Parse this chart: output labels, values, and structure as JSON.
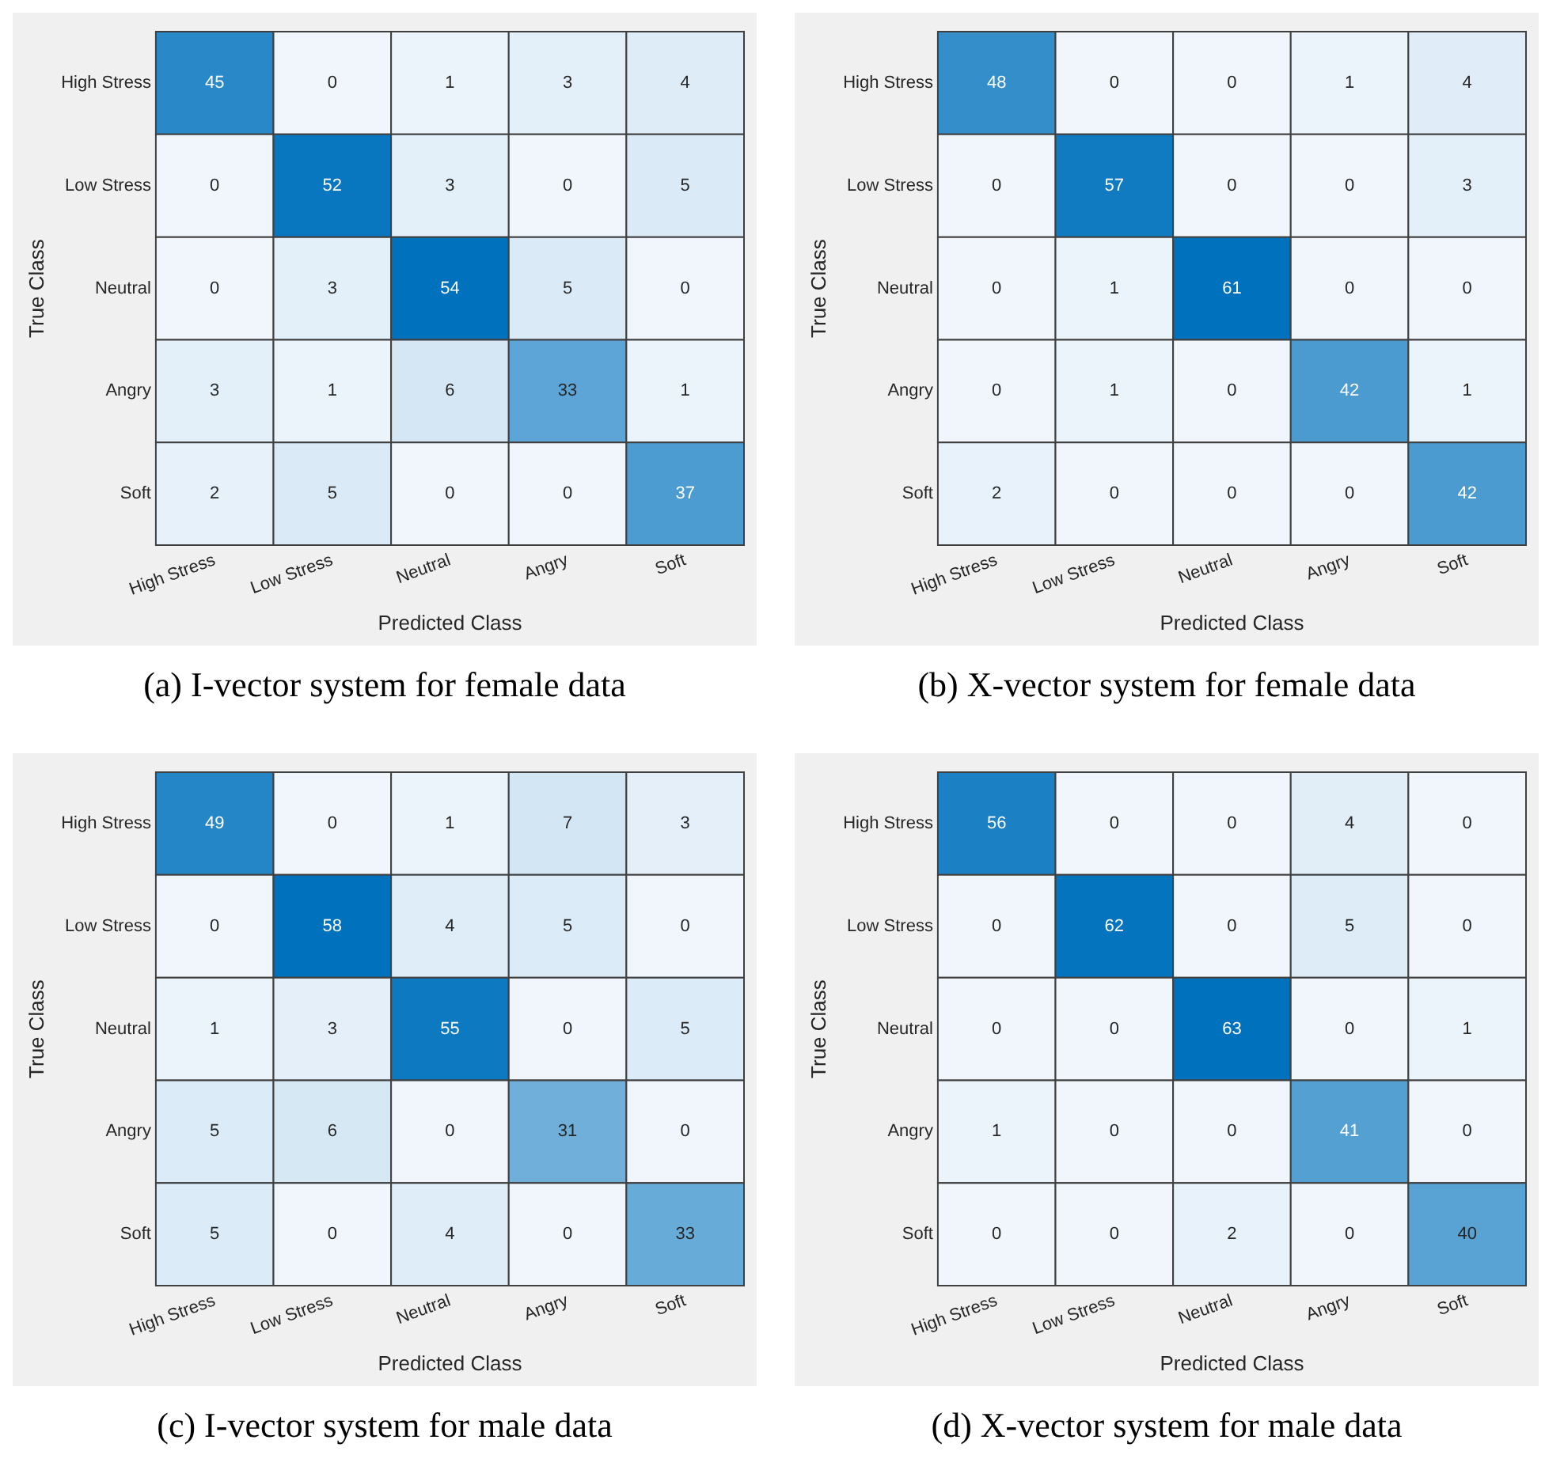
{
  "chart_data": [
    {
      "type": "heatmap",
      "xlabel": "Predicted Class",
      "ylabel": "True Class",
      "annotations": [
        "(a) I-vector system for female data"
      ],
      "data_labels": true,
      "categories": [
        "High Stress",
        "Low Stress",
        "Neutral",
        "Angry",
        "Soft"
      ],
      "y_categories": [
        "High Stress",
        "Low Stress",
        "Neutral",
        "Angry",
        "Soft"
      ],
      "cells": [
        [
          45,
          0,
          1,
          3,
          4
        ],
        [
          0,
          52,
          3,
          0,
          5
        ],
        [
          0,
          3,
          54,
          5,
          0
        ],
        [
          3,
          1,
          6,
          33,
          1
        ],
        [
          2,
          5,
          0,
          0,
          37
        ]
      ]
    },
    {
      "type": "heatmap",
      "xlabel": "Predicted Class",
      "ylabel": "True Class",
      "annotations": [
        "(b) X-vector system for female data"
      ],
      "data_labels": true,
      "categories": [
        "High Stress",
        "Low Stress",
        "Neutral",
        "Angry",
        "Soft"
      ],
      "y_categories": [
        "High Stress",
        "Low Stress",
        "Neutral",
        "Angry",
        "Soft"
      ],
      "cells": [
        [
          48,
          0,
          0,
          1,
          4
        ],
        [
          0,
          57,
          0,
          0,
          3
        ],
        [
          0,
          1,
          61,
          0,
          0
        ],
        [
          0,
          1,
          0,
          42,
          1
        ],
        [
          2,
          0,
          0,
          0,
          42
        ]
      ]
    },
    {
      "type": "heatmap",
      "xlabel": "Predicted Class",
      "ylabel": "True Class",
      "annotations": [
        "(c) I-vector system for male data"
      ],
      "data_labels": true,
      "categories": [
        "High Stress",
        "Low Stress",
        "Neutral",
        "Angry",
        "Soft"
      ],
      "y_categories": [
        "High Stress",
        "Low Stress",
        "Neutral",
        "Angry",
        "Soft"
      ],
      "cells": [
        [
          49,
          0,
          1,
          7,
          3
        ],
        [
          0,
          58,
          4,
          5,
          0
        ],
        [
          1,
          3,
          55,
          0,
          5
        ],
        [
          5,
          6,
          0,
          31,
          0
        ],
        [
          5,
          0,
          4,
          0,
          33
        ]
      ]
    },
    {
      "type": "heatmap",
      "xlabel": "Predicted Class",
      "ylabel": "True Class",
      "annotations": [
        "(d) X-vector system for male data"
      ],
      "data_labels": true,
      "categories": [
        "High Stress",
        "Low Stress",
        "Neutral",
        "Angry",
        "Soft"
      ],
      "y_categories": [
        "High Stress",
        "Low Stress",
        "Neutral",
        "Angry",
        "Soft"
      ],
      "cells": [
        [
          56,
          0,
          0,
          4,
          0
        ],
        [
          0,
          62,
          0,
          5,
          0
        ],
        [
          0,
          0,
          63,
          0,
          1
        ],
        [
          1,
          0,
          0,
          41,
          0
        ],
        [
          0,
          0,
          2,
          0,
          40
        ]
      ]
    }
  ]
}
